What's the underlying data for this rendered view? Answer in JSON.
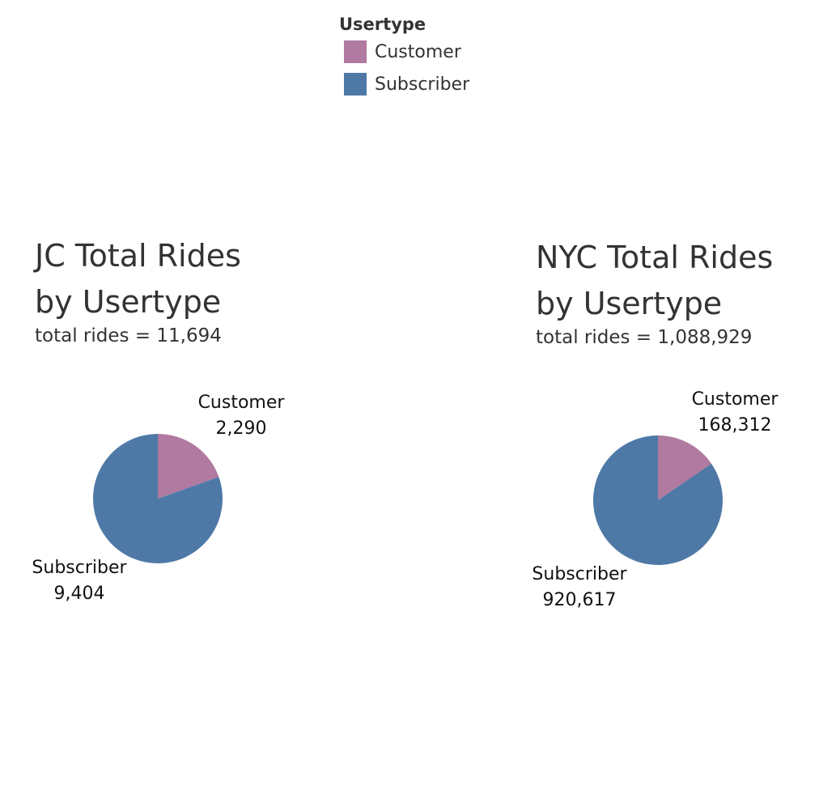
{
  "legend": {
    "title": "Usertype",
    "items": [
      {
        "label": "Customer",
        "color": "#b07aa1"
      },
      {
        "label": "Subscriber",
        "color": "#4e79a7"
      }
    ]
  },
  "chart_data": [
    {
      "type": "pie",
      "title": "JC Total Rides\nby Usertype",
      "subtitle": "total rides = 11,694",
      "slices": [
        {
          "name": "Customer",
          "value": 2290,
          "label_value": "2,290",
          "color": "#b07aa1"
        },
        {
          "name": "Subscriber",
          "value": 9404,
          "label_value": "9,404",
          "color": "#4e79a7"
        }
      ]
    },
    {
      "type": "pie",
      "title": "NYC Total Rides\nby Usertype",
      "subtitle": "total rides = 1,088,929",
      "slices": [
        {
          "name": "Customer",
          "value": 168312,
          "label_value": "168,312",
          "color": "#b07aa1"
        },
        {
          "name": "Subscriber",
          "value": 920617,
          "label_value": "920,617",
          "color": "#4e79a7"
        }
      ]
    }
  ]
}
